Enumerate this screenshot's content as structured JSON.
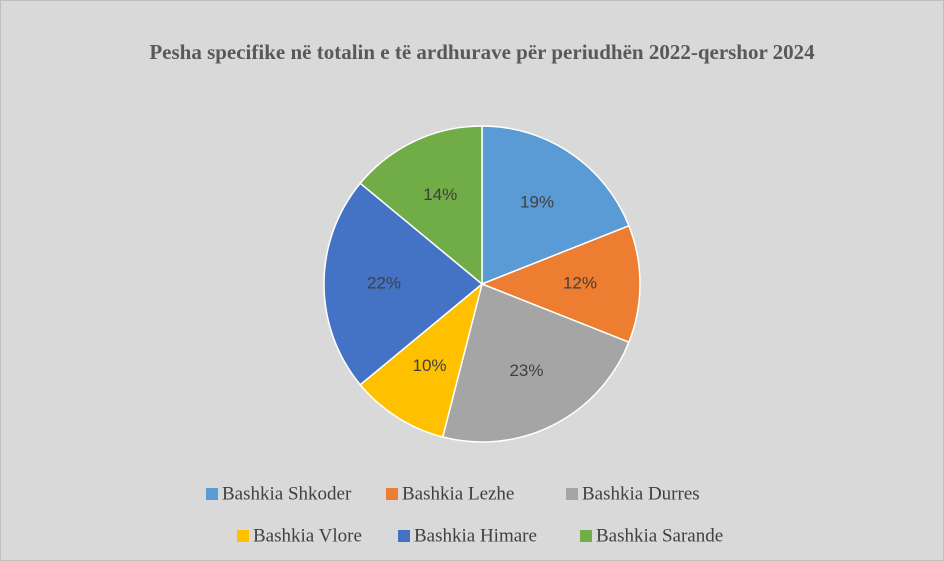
{
  "chart_data": {
    "type": "pie",
    "title": "Pesha specifike në totalin e të ardhurave për periudhën 2022-qershor 2024",
    "categories": [
      "Bashkia Shkoder",
      "Bashkia Lezhe",
      "Bashkia Durres",
      "Bashkia Vlore",
      "Bashkia Himare",
      "Bashkia Sarande"
    ],
    "values": [
      19,
      12,
      23,
      10,
      22,
      14
    ],
    "value_labels": [
      "19%",
      "12%",
      "23%",
      "10%",
      "22%",
      "14%"
    ],
    "colors": [
      "#5b9bd5",
      "#ed7d31",
      "#a5a5a5",
      "#ffc000",
      "#4472c4",
      "#70ad47"
    ],
    "legend": "bottom"
  }
}
